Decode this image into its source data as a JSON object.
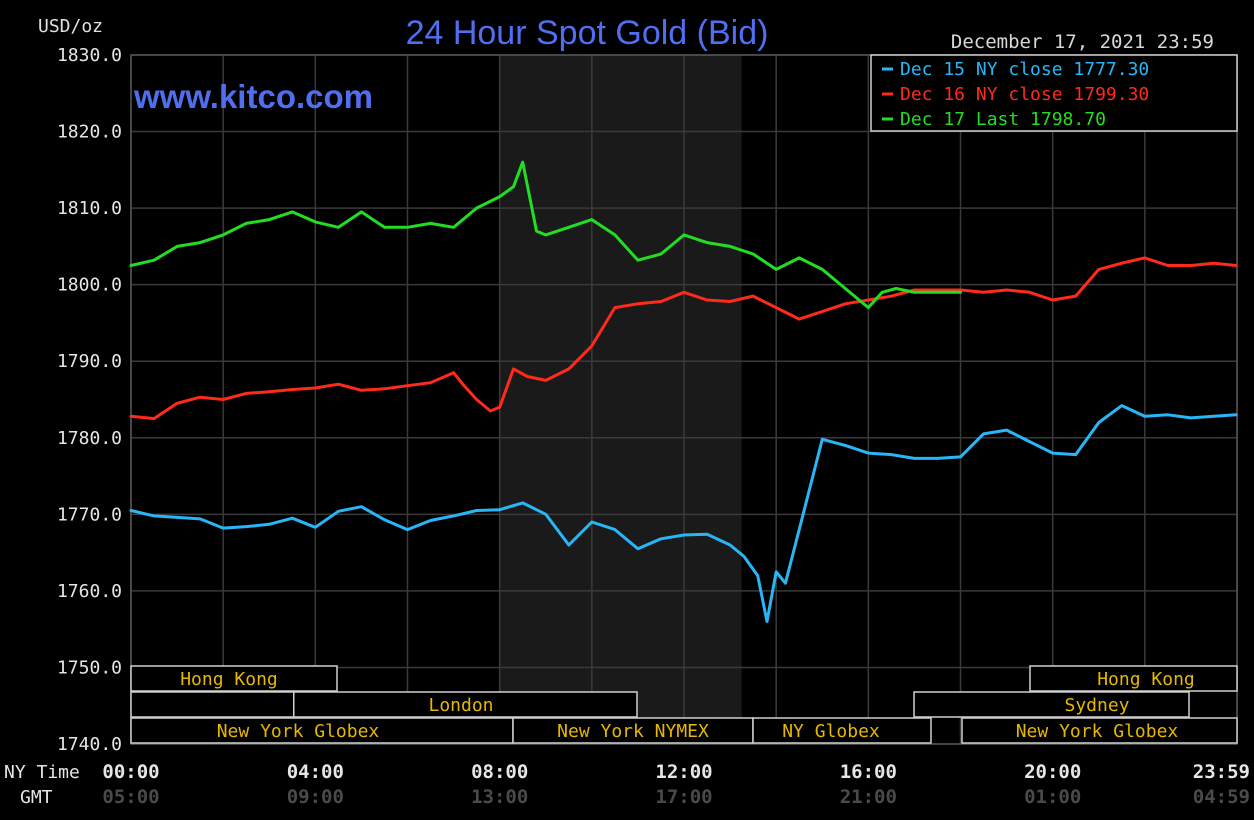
{
  "header": {
    "unit_label": "USD/oz",
    "title": "24 Hour Spot Gold (Bid)",
    "date": "December 17, 2021 23:59",
    "watermark": "www.kitco.com"
  },
  "legend": [
    {
      "text": "Dec 15 NY close 1777.30",
      "color": "#29b6f6"
    },
    {
      "text": "Dec 16 NY close 1799.30",
      "color": "#ff2a1a"
    },
    {
      "text": "Dec 17 Last 1798.70",
      "color": "#22dd22"
    }
  ],
  "x_axis": {
    "row1_label": "NY Time",
    "row2_label": "GMT",
    "ticks_ny": [
      "00:00",
      "04:00",
      "08:00",
      "12:00",
      "16:00",
      "20:00",
      "23:59"
    ],
    "ticks_gmt": [
      "05:00",
      "09:00",
      "13:00",
      "17:00",
      "21:00",
      "01:00",
      "04:59"
    ]
  },
  "markets": [
    {
      "label": "Hong Kong"
    },
    {
      "label": "Hong Kong"
    },
    {
      "label": "London"
    },
    {
      "label": "Sydney"
    },
    {
      "label": "New York Globex"
    },
    {
      "label": "New York NYMEX"
    },
    {
      "label": "NY Globex"
    },
    {
      "label": "New York Globex"
    }
  ],
  "chart_data": {
    "type": "line",
    "xlabel": "NY Time",
    "ylabel": "USD/oz",
    "ylim": [
      1740,
      1830
    ],
    "yticks": [
      "1830.0",
      "1820.0",
      "1810.0",
      "1800.0",
      "1790.0",
      "1780.0",
      "1770.0",
      "1760.0",
      "1750.0",
      "1740.0"
    ],
    "xlim_hours": [
      0,
      24
    ],
    "highlight_hours": [
      8,
      13.25
    ],
    "series": [
      {
        "name": "Dec 15",
        "color": "#29b6f6",
        "x": [
          0,
          0.5,
          1,
          1.5,
          2,
          2.5,
          3,
          3.5,
          4,
          4.5,
          5,
          5.5,
          6,
          6.5,
          7,
          7.5,
          8,
          8.5,
          9,
          9.5,
          10,
          10.5,
          11,
          11.5,
          12,
          12.5,
          13,
          13.3,
          13.6,
          13.8,
          14,
          14.2,
          14.5,
          15,
          15.5,
          16,
          16.5,
          17,
          17.5,
          18,
          18.5,
          19,
          19.5,
          20,
          20.5,
          21,
          21.5,
          22,
          22.5,
          23,
          23.5,
          23.98
        ],
        "y": [
          1770.5,
          1769.8,
          1769.6,
          1769.4,
          1768.2,
          1768.4,
          1768.7,
          1769.5,
          1768.3,
          1770.4,
          1771.0,
          1769.3,
          1768.0,
          1769.2,
          1769.8,
          1770.5,
          1770.6,
          1771.5,
          1770.0,
          1766.0,
          1769.0,
          1768.0,
          1765.5,
          1766.8,
          1767.3,
          1767.4,
          1766.0,
          1764.5,
          1762.0,
          1756.0,
          1762.5,
          1761.0,
          1768.0,
          1779.8,
          1779.0,
          1778.0,
          1777.8,
          1777.3,
          1777.3,
          1777.5,
          1780.5,
          1781.0,
          1779.5,
          1778.0,
          1777.8,
          1782.0,
          1784.2,
          1782.8,
          1783.0,
          1782.6,
          1782.8,
          1783.0
        ]
      },
      {
        "name": "Dec 16",
        "color": "#ff2a1a",
        "x": [
          0,
          0.5,
          1,
          1.5,
          2,
          2.5,
          3,
          3.5,
          4,
          4.5,
          5,
          5.5,
          6,
          6.5,
          7,
          7.2,
          7.5,
          7.8,
          8,
          8.3,
          8.6,
          9,
          9.5,
          10,
          10.5,
          11,
          11.5,
          12,
          12.5,
          13,
          13.5,
          14,
          14.5,
          15,
          15.5,
          16,
          16.5,
          17,
          17.5,
          18,
          18.5,
          19,
          19.5,
          20,
          20.5,
          21,
          21.5,
          22,
          22.5,
          23,
          23.5,
          23.98
        ],
        "y": [
          1782.8,
          1782.5,
          1784.5,
          1785.3,
          1785.0,
          1785.8,
          1786.0,
          1786.3,
          1786.5,
          1787.0,
          1786.2,
          1786.4,
          1786.8,
          1787.2,
          1788.5,
          1787.0,
          1785.0,
          1783.5,
          1784.0,
          1789.0,
          1788.0,
          1787.5,
          1789.0,
          1792.0,
          1797.0,
          1797.5,
          1797.8,
          1799.0,
          1798.0,
          1797.8,
          1798.5,
          1797.0,
          1795.5,
          1796.5,
          1797.5,
          1798.0,
          1798.5,
          1799.3,
          1799.3,
          1799.3,
          1799.0,
          1799.3,
          1799.0,
          1798.0,
          1798.5,
          1802.0,
          1802.8,
          1803.5,
          1802.5,
          1802.5,
          1802.8,
          1802.5
        ]
      },
      {
        "name": "Dec 17",
        "color": "#22dd22",
        "x": [
          0,
          0.5,
          1,
          1.5,
          2,
          2.5,
          3,
          3.5,
          4,
          4.5,
          5,
          5.5,
          6,
          6.5,
          7,
          7.5,
          8,
          8.3,
          8.5,
          8.8,
          9,
          9.5,
          10,
          10.5,
          11,
          11.5,
          12,
          12.5,
          13,
          13.5,
          14,
          14.5,
          15,
          15.5,
          16,
          16.3,
          16.6,
          17,
          17.5,
          18
        ],
        "y": [
          1802.5,
          1803.2,
          1805.0,
          1805.5,
          1806.5,
          1808.0,
          1808.5,
          1809.5,
          1808.2,
          1807.5,
          1809.5,
          1807.5,
          1807.5,
          1808.0,
          1807.5,
          1810.0,
          1811.5,
          1812.8,
          1816.0,
          1807.0,
          1806.5,
          1807.5,
          1808.5,
          1806.5,
          1803.2,
          1804.0,
          1806.5,
          1805.5,
          1805.0,
          1804.0,
          1802.0,
          1803.5,
          1802.0,
          1799.5,
          1797.0,
          1799.0,
          1799.5,
          1799.0,
          1799.0,
          1799.0
        ]
      }
    ]
  }
}
